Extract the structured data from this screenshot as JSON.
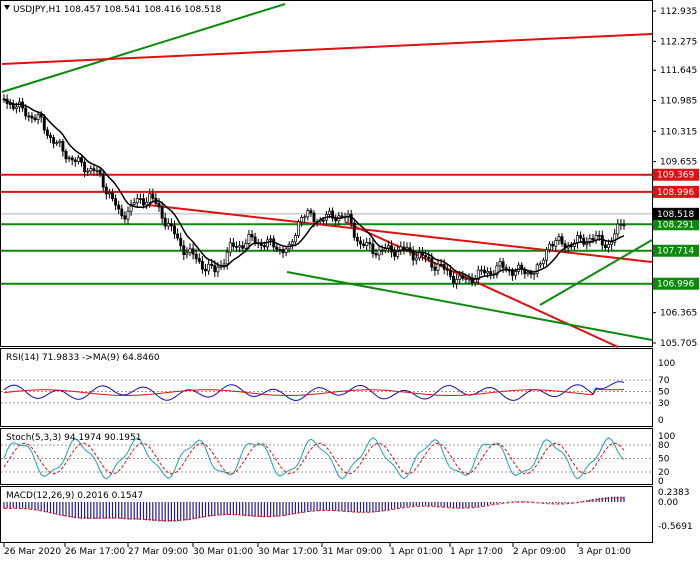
{
  "main_pane": {
    "header": "USDJPY,H1  108.457 108.541 108.416 108.518",
    "price_axis": [
      "112.935",
      "112.275",
      "111.645",
      "110.985",
      "110.315",
      "109.655",
      "108.996",
      "108.335",
      "107.675",
      "107.015",
      "106.365",
      "105.705"
    ],
    "current_price": {
      "label": "108.518",
      "value": 108.518,
      "color": "#000000"
    },
    "horizontal_levels": [
      {
        "label": "109.369",
        "value": 109.369,
        "color": "#e01010"
      },
      {
        "label": "108.996",
        "value": 108.996,
        "color": "#e01010"
      },
      {
        "label": "108.291",
        "value": 108.291,
        "color": "#0a8a0a"
      },
      {
        "label": "107.714",
        "value": 107.714,
        "color": "#0a8a0a"
      },
      {
        "label": "106.996",
        "value": 106.996,
        "color": "#0a8a0a"
      }
    ]
  },
  "rsi_pane": {
    "header": "RSI(14) 71.9833  ->MA(9) 64.8460",
    "axis": [
      "100",
      "70",
      "50",
      "30",
      "0"
    ]
  },
  "stoch_pane": {
    "header": "Stoch(5,3,3) 94.1974 90.1951",
    "axis": [
      "100",
      "80",
      "50",
      "20",
      "0"
    ]
  },
  "macd_pane": {
    "header": "MACD(12,26,9) 0.2016 0.1547",
    "axis": [
      "0.2383",
      "0.00",
      "-0.5691"
    ]
  },
  "time_axis": [
    "26 Mar 2020",
    "26 Mar 17:00",
    "27 Mar 09:00",
    "30 Mar 01:00",
    "30 Mar 17:00",
    "31 Mar 09:00",
    "1 Apr 01:00",
    "1 Apr 17:00",
    "2 Apr 09:00",
    "3 Apr 01:00"
  ],
  "colors": {
    "candle": "#000000",
    "ma": "#000000",
    "support_line": "#0a8a0a",
    "resistance_line": "#e01010",
    "rsi": "#1010c0",
    "rsi_ma": "#e01010",
    "stoch_main": "#20a0b0",
    "stoch_signal": "#e01010",
    "macd_hist": "#2a1a8a",
    "macd_signal": "#e01010"
  }
}
